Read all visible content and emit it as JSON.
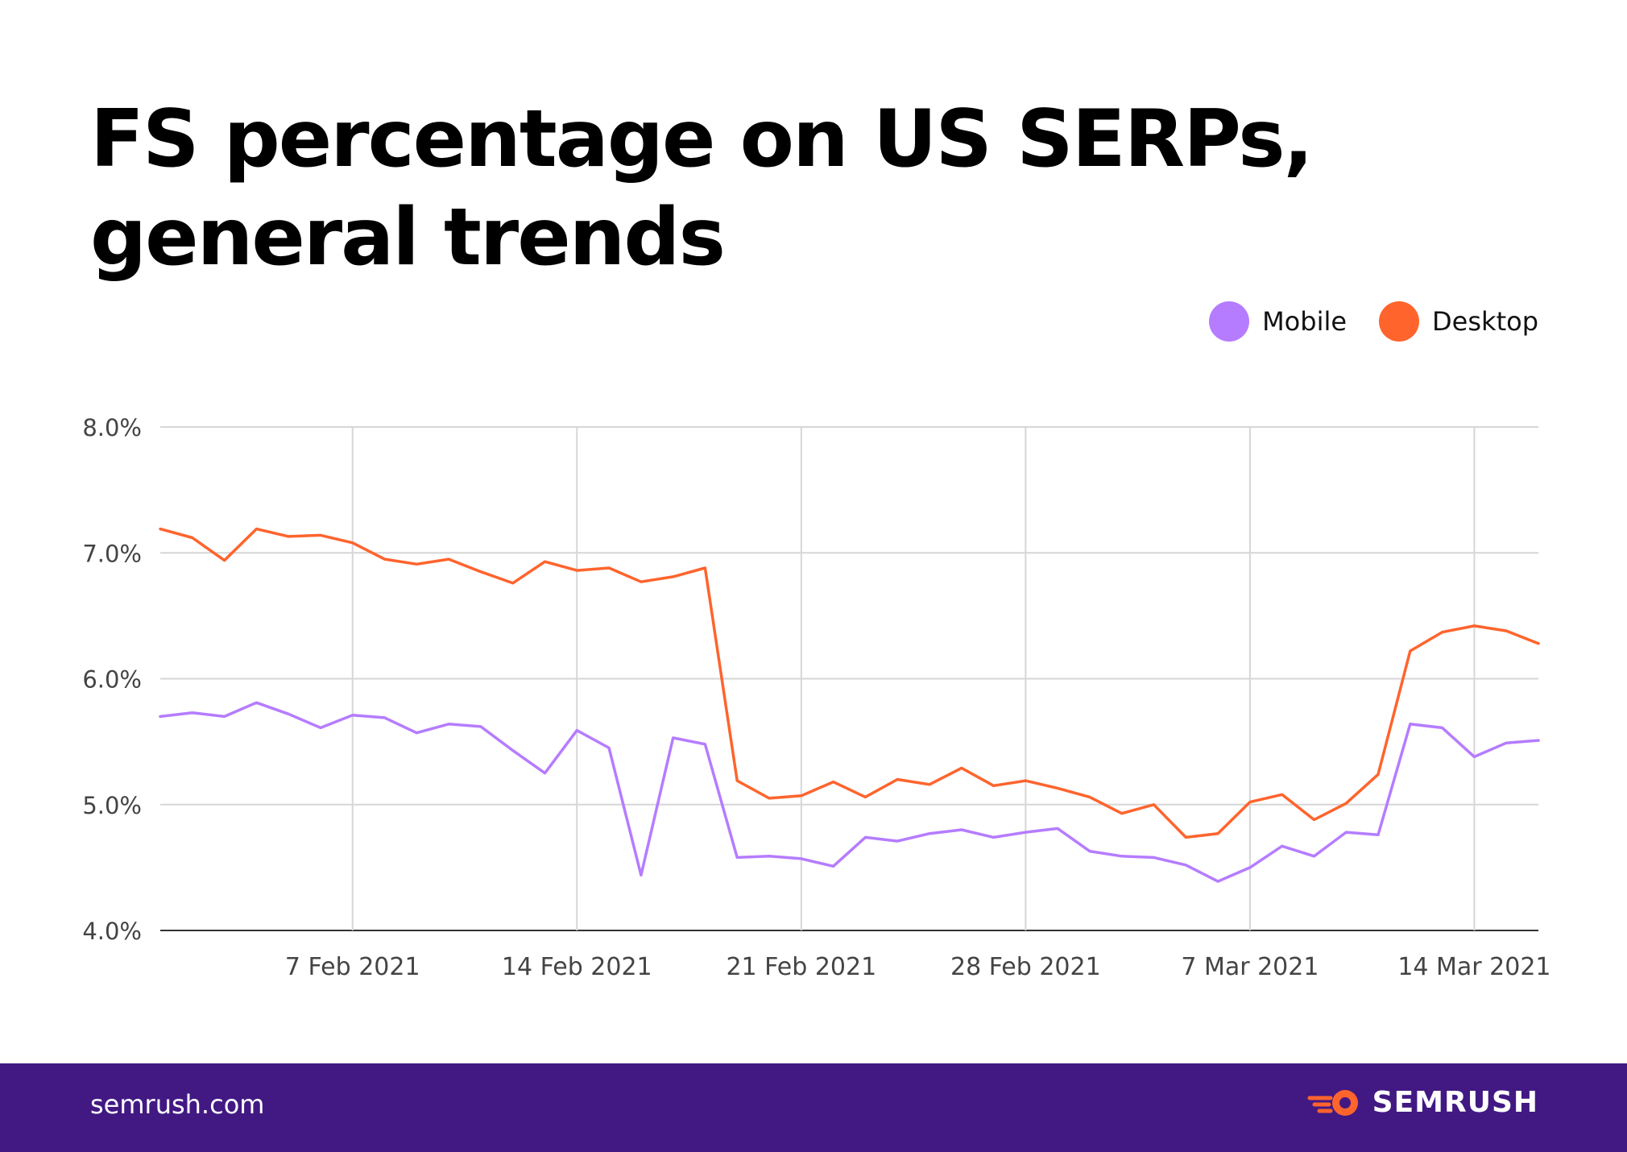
{
  "title_line1": "FS percentage on US SERPs,",
  "title_line2": "general trends",
  "legend": [
    {
      "label": "Mobile",
      "color": "#b57cff"
    },
    {
      "label": "Desktop",
      "color": "#ff642d"
    }
  ],
  "footer": {
    "url": "semrush.com",
    "brand": "SEMRUSH"
  },
  "chart_data": {
    "type": "line",
    "x_start": "2021-02-01",
    "x_ticks": [
      "7 Feb 2021",
      "14 Feb 2021",
      "21 Feb 2021",
      "28 Feb 2021",
      "7 Mar 2021",
      "14 Mar 2021"
    ],
    "y_ticks": [
      "8.0%",
      "7.0%",
      "6.0%",
      "5.0%",
      "4.0%"
    ],
    "ylim": [
      4.0,
      8.0
    ],
    "grid": true,
    "legend_position": "top-right",
    "series": [
      {
        "name": "Mobile",
        "color": "#b57cff",
        "values": [
          5.7,
          5.73,
          5.7,
          5.81,
          5.72,
          5.61,
          5.71,
          5.69,
          5.57,
          5.64,
          5.62,
          5.43,
          5.25,
          5.59,
          5.45,
          4.44,
          5.53,
          5.48,
          4.58,
          4.59,
          4.57,
          4.51,
          4.74,
          4.71,
          4.77,
          4.8,
          4.74,
          4.78,
          4.81,
          4.63,
          4.59,
          4.58,
          4.52,
          4.39,
          4.5,
          4.67,
          4.59,
          4.78,
          4.76,
          5.64,
          5.61,
          5.38,
          5.49,
          5.51
        ]
      },
      {
        "name": "Desktop",
        "color": "#ff642d",
        "values": [
          7.19,
          7.12,
          6.94,
          7.19,
          7.13,
          7.14,
          7.08,
          6.95,
          6.91,
          6.95,
          6.85,
          6.76,
          6.93,
          6.86,
          6.88,
          6.77,
          6.81,
          6.88,
          5.19,
          5.05,
          5.07,
          5.18,
          5.06,
          5.2,
          5.16,
          5.29,
          5.15,
          5.19,
          5.13,
          5.06,
          4.93,
          5.0,
          4.74,
          4.77,
          5.02,
          5.08,
          4.88,
          5.01,
          5.24,
          6.22,
          6.37,
          6.42,
          6.38,
          6.28
        ]
      }
    ]
  }
}
